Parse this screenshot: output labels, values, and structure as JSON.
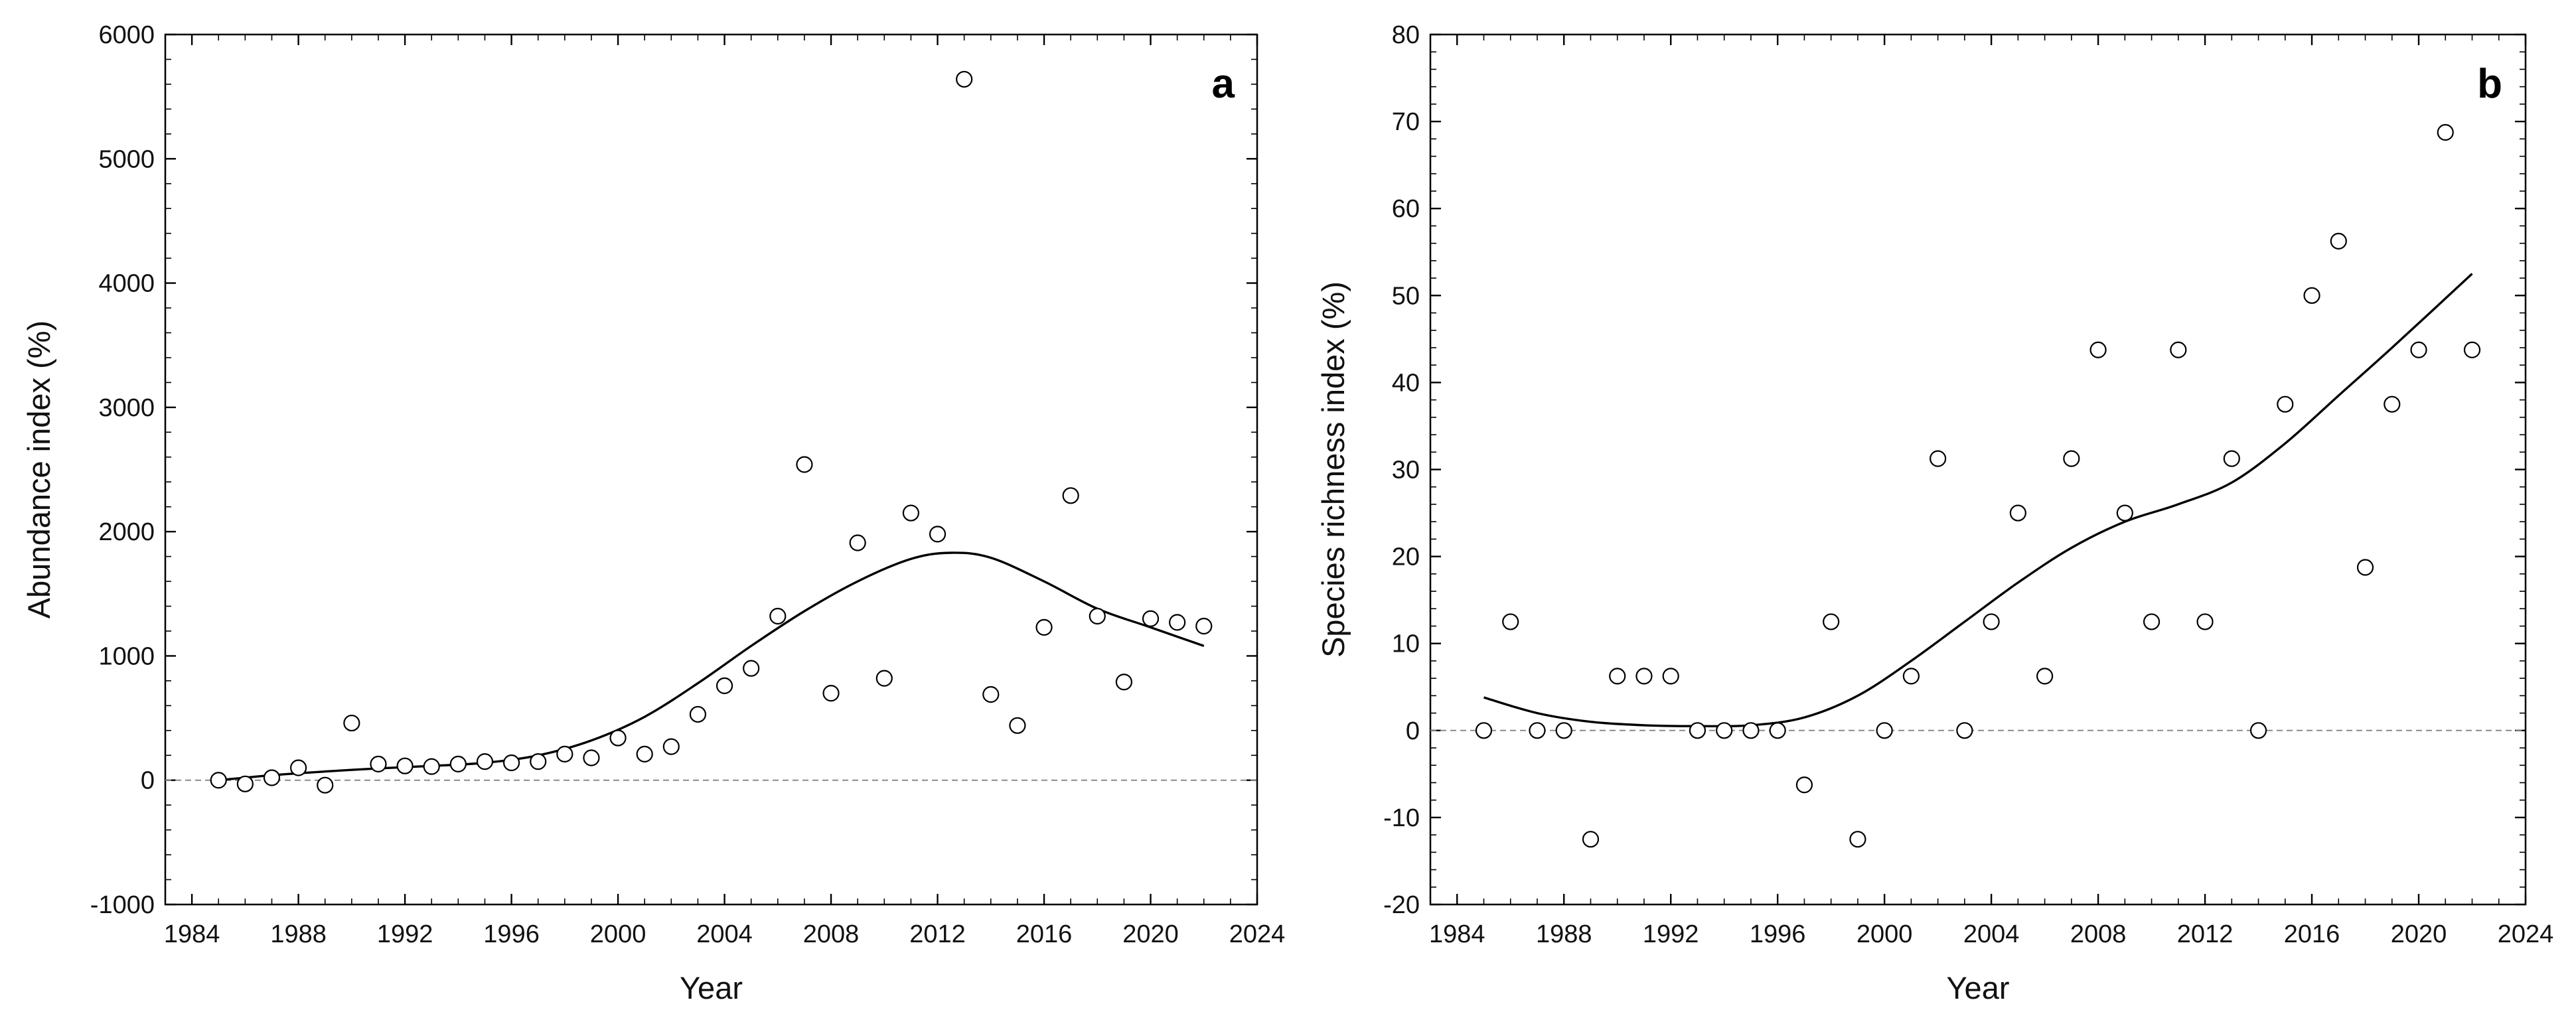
{
  "chart_data": [
    {
      "type": "scatter",
      "panel_label": "a",
      "title": "",
      "xlabel": "Year",
      "ylabel": "Abundance index (%)",
      "xlim": [
        1983,
        2024
      ],
      "ylim": [
        -1000,
        6000
      ],
      "x_ticks": [
        1984,
        1988,
        1992,
        1996,
        2000,
        2004,
        2008,
        2012,
        2016,
        2020,
        2024
      ],
      "y_ticks": [
        -1000,
        0,
        1000,
        2000,
        3000,
        4000,
        5000,
        6000
      ],
      "x_minor_step": 1,
      "y_minor_step": 200,
      "grid": false,
      "reference_line_y": 0,
      "points": {
        "x": [
          1985,
          1986,
          1987,
          1988,
          1989,
          1990,
          1991,
          1992,
          1993,
          1994,
          1995,
          1996,
          1997,
          1998,
          1999,
          2000,
          2001,
          2002,
          2003,
          2004,
          2005,
          2006,
          2007,
          2008,
          2009,
          2010,
          2011,
          2012,
          2013,
          2014,
          2015,
          2016,
          2017,
          2018,
          2019,
          2020,
          2021,
          2022
        ],
        "y": [
          0,
          -30,
          20,
          100,
          -40,
          460,
          130,
          115,
          110,
          130,
          150,
          140,
          150,
          210,
          180,
          340,
          210,
          270,
          530,
          760,
          900,
          1320,
          2540,
          700,
          1910,
          820,
          2150,
          1980,
          5640,
          690,
          440,
          1230,
          2290,
          1320,
          790,
          1300,
          1270,
          1240
        ]
      },
      "trend": {
        "x": [
          1985,
          1987,
          1989,
          1991,
          1993,
          1995,
          1997,
          1999,
          2001,
          2003,
          2005,
          2007,
          2009,
          2011,
          2012.5,
          2014,
          2016,
          2018,
          2020,
          2022
        ],
        "y": [
          0,
          40,
          70,
          95,
          115,
          140,
          200,
          320,
          510,
          780,
          1080,
          1360,
          1600,
          1780,
          1830,
          1790,
          1600,
          1380,
          1230,
          1080
        ]
      }
    },
    {
      "type": "scatter",
      "panel_label": "b",
      "title": "",
      "xlabel": "Year",
      "ylabel": "Species richness index (%)",
      "xlim": [
        1983,
        2024
      ],
      "ylim": [
        -20,
        80
      ],
      "x_ticks": [
        1984,
        1988,
        1992,
        1996,
        2000,
        2004,
        2008,
        2012,
        2016,
        2020,
        2024
      ],
      "y_ticks": [
        -20,
        -10,
        0,
        10,
        20,
        30,
        40,
        50,
        60,
        70,
        80
      ],
      "x_minor_step": 1,
      "y_minor_step": 2,
      "grid": false,
      "reference_line_y": 0,
      "points": {
        "x": [
          1985,
          1986,
          1987,
          1988,
          1989,
          1990,
          1991,
          1992,
          1993,
          1994,
          1995,
          1996,
          1997,
          1998,
          1999,
          2000,
          2001,
          2002,
          2003,
          2004,
          2005,
          2006,
          2007,
          2008,
          2009,
          2010,
          2011,
          2012,
          2013,
          2014,
          2015,
          2016,
          2017,
          2018,
          2019,
          2020,
          2021,
          2022
        ],
        "y": [
          0,
          12.5,
          0,
          0,
          -12.5,
          6.25,
          6.25,
          6.25,
          0,
          0,
          0,
          0,
          -6.25,
          12.5,
          -12.5,
          0,
          6.25,
          31.25,
          0,
          12.5,
          25,
          6.25,
          31.25,
          43.75,
          25,
          12.5,
          43.75,
          12.5,
          31.25,
          0,
          37.5,
          50,
          56.25,
          18.75,
          37.5,
          43.75,
          68.75,
          43.75
        ]
      },
      "trend": {
        "x": [
          1985,
          1987,
          1989,
          1991,
          1993,
          1995,
          1997,
          1999,
          2001,
          2003,
          2005,
          2007,
          2009,
          2011,
          2013,
          2015,
          2017,
          2019,
          2022
        ],
        "y": [
          3.8,
          2.0,
          1.0,
          0.6,
          0.5,
          0.6,
          1.5,
          4.0,
          8.0,
          12.5,
          17.0,
          21.0,
          24.0,
          26.0,
          28.5,
          33.0,
          38.5,
          44.0,
          52.5
        ]
      }
    }
  ]
}
